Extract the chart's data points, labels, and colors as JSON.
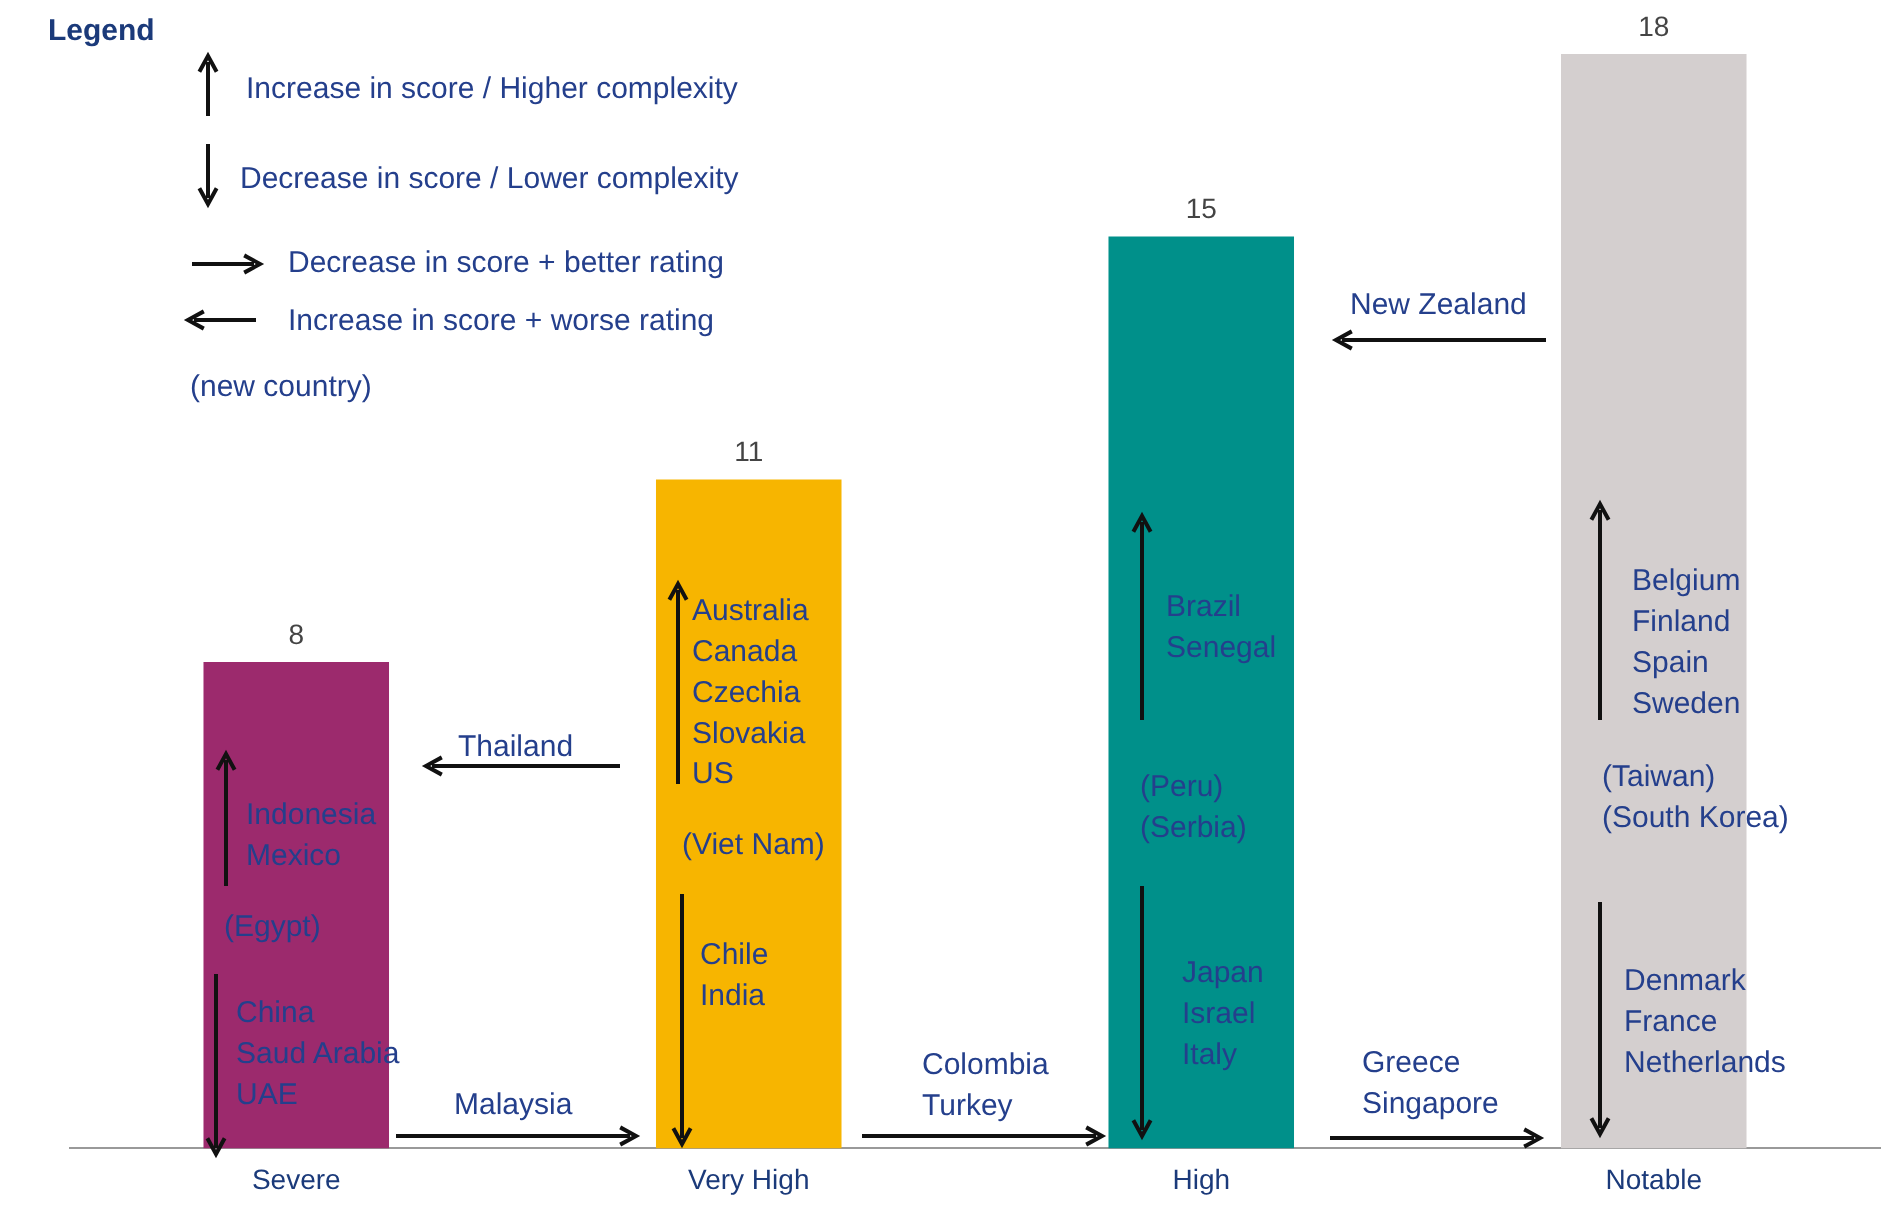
{
  "chart_data": {
    "type": "bar",
    "legend_title": "Legend",
    "categories": [
      "Severe",
      "Very High",
      "High",
      "Notable"
    ],
    "values": [
      8,
      11,
      15,
      18
    ],
    "colors": [
      "#9c2a6d",
      "#f7b500",
      "#00908a",
      "#d4cfcf"
    ],
    "tick_labels": "x",
    "data_labels": true,
    "annotations": [
      "Increase in score / Higher complexity",
      "Decrease in score / Lower complexity",
      "Decrease in score + better rating",
      "Increase in score + worse rating",
      "(new country)",
      "Thailand",
      "Indonesia\nMexico",
      "(Egypt)",
      "China\nSaud Arabia\nUAE",
      "Malaysia",
      "Australia\nCanada\nCzechia\nSlovakia\nUS",
      "(Viet Nam)",
      "Chile\nIndia",
      "Colombia\nTurkey",
      "Brazil\nSenegal",
      "(Peru)\n(Serbia)",
      "Japan\nIsrael\nItaly",
      "Greece\nSingapore",
      "New Zealand",
      "Belgium\nFinland\nSpain\nSweden",
      "(Taiwan)\n(South Korea)",
      "Denmark\nFrance\nNetherlands"
    ]
  }
}
